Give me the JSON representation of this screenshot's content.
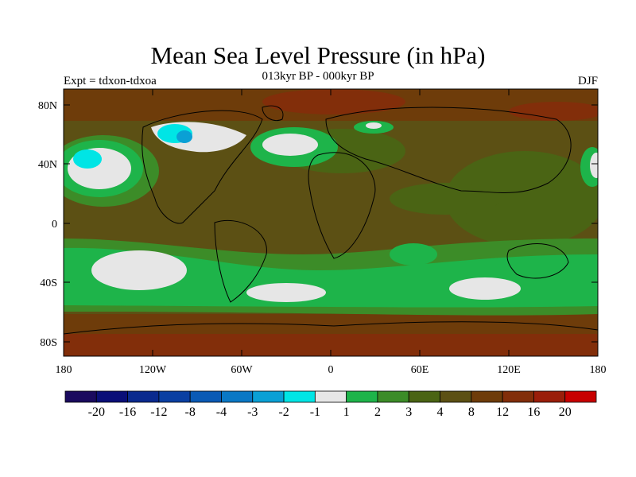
{
  "title": "Mean Sea Level Pressure (in hPa)",
  "subtitle": "013kyr BP - 000kyr BP",
  "left_label": "Expt = tdxon-tdxoa",
  "right_label": "DJF",
  "lat_ticks": [
    "80N",
    "40N",
    "0",
    "40S",
    "80S"
  ],
  "lon_ticks": [
    "180",
    "120W",
    "60W",
    "0",
    "60E",
    "120E",
    "180"
  ],
  "colorbar": {
    "colors": [
      "#1a0a5e",
      "#0a0f78",
      "#0a2a8e",
      "#0a3fa2",
      "#0a5ab5",
      "#0a78c5",
      "#0aa0d5",
      "#00e5e5",
      "#e6e6e6",
      "#1eb44a",
      "#3c8c28",
      "#4a6414",
      "#5c5014",
      "#6e3c0a",
      "#822e0a",
      "#9a1e0a",
      "#c80000"
    ],
    "labels": [
      "-20",
      "-16",
      "-12",
      "-8",
      "-4",
      "-3",
      "-2",
      "-1",
      "1",
      "2",
      "3",
      "4",
      "8",
      "12",
      "16",
      "20"
    ]
  },
  "colors": {
    "ocean_base": "#5c5014",
    "land_base": "#5c5014",
    "green": "#1eb44a",
    "dark_green": "#3c8c28",
    "olive": "#4a6414",
    "white": "#e6e6e6",
    "cyan": "#00e5e5",
    "blue": "#0aa0d5",
    "brown": "#6e3c0a",
    "red_brown": "#822e0a",
    "red": "#9a1e0a"
  }
}
